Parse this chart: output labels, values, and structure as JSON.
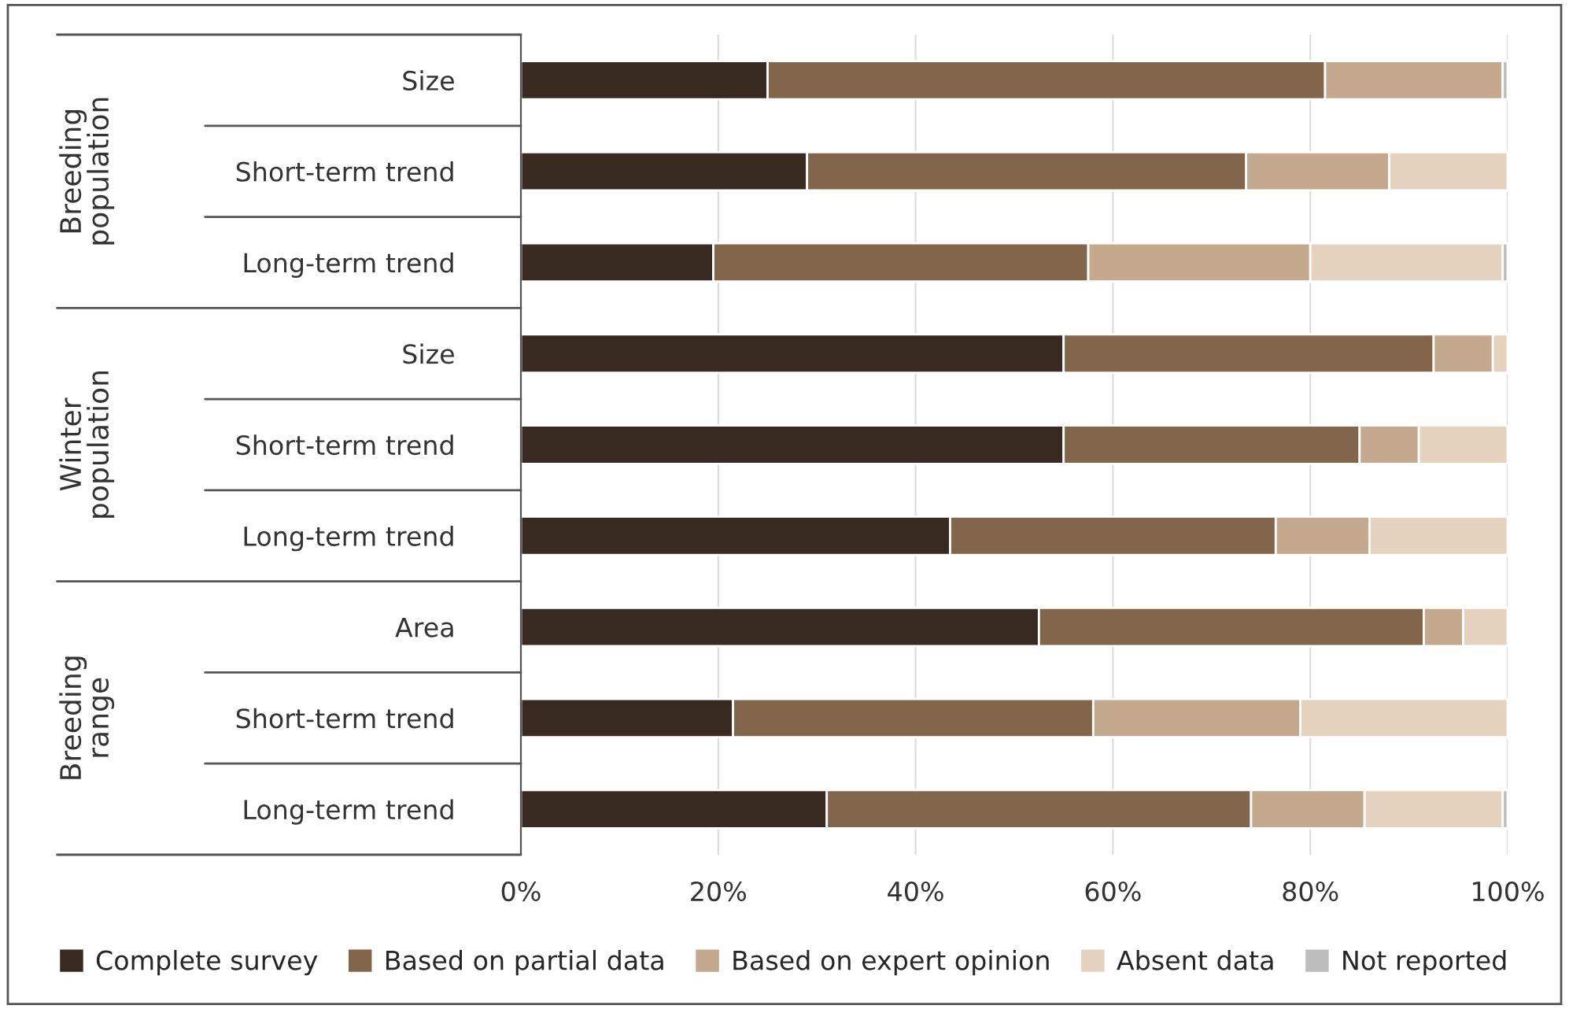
{
  "chart_data": {
    "type": "bar",
    "orientation": "horizontal",
    "stacked": true,
    "categories": [
      "Size",
      "Short-term trend",
      "Long-term trend",
      "Size",
      "Short-term trend",
      "Long-term trend",
      "Area",
      "Short-term trend",
      "Long-term trend"
    ],
    "series": [
      {
        "name": "Complete survey",
        "color": "#382a20",
        "values": [
          25,
          29,
          19.5,
          55,
          55,
          43.5,
          52.5,
          21.5,
          31
        ]
      },
      {
        "name": "Based on partial data",
        "color": "#83654b",
        "values": [
          56.5,
          44.5,
          38,
          37.5,
          30,
          33,
          39,
          36.5,
          43
        ]
      },
      {
        "name": "Based on expert opinion",
        "color": "#c5a98e",
        "values": [
          18,
          14.5,
          22.5,
          6,
          6,
          9.5,
          4,
          21,
          11.5
        ]
      },
      {
        "name": "Absent data",
        "color": "#e6d3bf",
        "values": [
          null,
          12,
          19.5,
          1.5,
          9,
          14,
          4.5,
          21,
          14
        ]
      },
      {
        "name": "Not reported",
        "color": "#bdbdbd",
        "values": [
          0.5,
          null,
          0.5,
          null,
          null,
          null,
          null,
          null,
          0.5
        ]
      }
    ],
    "xlim": [
      0,
      100
    ],
    "xticks": [
      {
        "value": 0,
        "label": "0%"
      },
      {
        "value": 20,
        "label": "20%"
      },
      {
        "value": 40,
        "label": "40%"
      },
      {
        "value": 60,
        "label": "60%"
      },
      {
        "value": 80,
        "label": "80%"
      },
      {
        "value": 100,
        "label": "100%"
      }
    ],
    "annotations": [
      "Breeding population",
      "Winter population",
      "Breeding range"
    ],
    "grid": "x",
    "legend": "bottom"
  }
}
